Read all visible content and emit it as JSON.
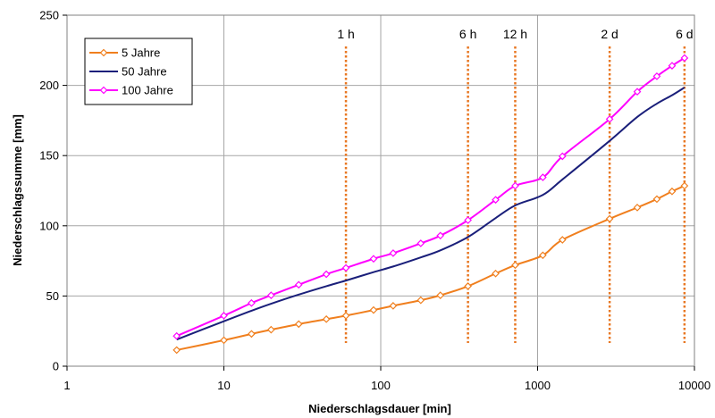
{
  "chart_data": {
    "type": "line",
    "x_scale": "log",
    "xlabel": "Niederschlagsdauer [min]",
    "ylabel": "Niederschlagssumme [mm]",
    "xlim": [
      1,
      10000
    ],
    "ylim": [
      0,
      250
    ],
    "x_ticks": [
      "1",
      "10",
      "100",
      "1000",
      "10000"
    ],
    "y_ticks": [
      "0",
      "50",
      "100",
      "150",
      "200",
      "250"
    ],
    "grid": true,
    "legend_position": "top-left",
    "duration_markers": [
      {
        "label": "1 h",
        "x": 60
      },
      {
        "label": "6 h",
        "x": 360
      },
      {
        "label": "12 h",
        "x": 720
      },
      {
        "label": "2 d",
        "x": 2880
      },
      {
        "label": "6 d",
        "x": 8640
      }
    ],
    "marker_color": "#E87722",
    "series": [
      {
        "name": "5 Jahre",
        "color": "#F07F1E",
        "marker": "diamond",
        "x": [
          5,
          10,
          15,
          20,
          30,
          45,
          60,
          90,
          120,
          180,
          240,
          360,
          540,
          720,
          1080,
          1440,
          2880,
          4320,
          5760,
          7200,
          8640
        ],
        "y": [
          11.5,
          18.5,
          23,
          26,
          30,
          33.5,
          36,
          40,
          43,
          47,
          50.5,
          57,
          66,
          72,
          79,
          90,
          105,
          113,
          119,
          124.5,
          128.5
        ]
      },
      {
        "name": "50 Jahre",
        "color": "#1A1F7A",
        "marker": "none",
        "x": [
          5,
          10,
          15,
          20,
          30,
          45,
          60,
          90,
          120,
          180,
          240,
          360,
          540,
          720,
          1080,
          1440,
          2880,
          4320,
          5760,
          7200,
          8640
        ],
        "y": [
          19,
          32,
          39.5,
          44.5,
          51,
          57,
          61,
          67,
          71,
          77.5,
          82.5,
          92,
          105.5,
          114.5,
          122,
          133,
          160.5,
          177.5,
          187,
          193,
          198.5
        ]
      },
      {
        "name": "100 Jahre",
        "color": "#FF00FF",
        "marker": "diamond",
        "x": [
          5,
          10,
          15,
          20,
          30,
          45,
          60,
          90,
          120,
          180,
          240,
          360,
          540,
          720,
          1080,
          1440,
          2880,
          4320,
          5760,
          7200,
          8640
        ],
        "y": [
          21.5,
          36,
          45,
          50.5,
          58,
          65.5,
          70,
          76.5,
          80.5,
          87.5,
          93,
          104,
          118.5,
          128.5,
          134.5,
          149.5,
          176,
          195.5,
          206.5,
          214,
          219.5
        ]
      }
    ]
  }
}
